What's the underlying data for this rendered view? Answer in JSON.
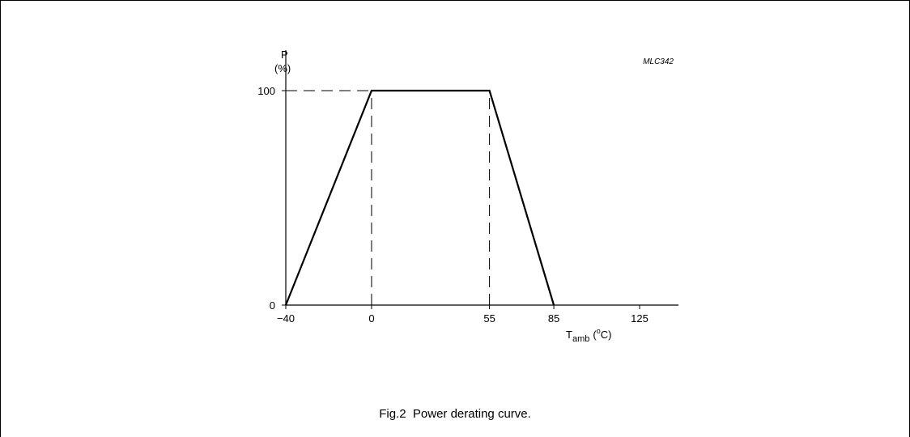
{
  "figure": {
    "reference_code": "MLC342",
    "caption": "Fig.2  Power derating curve."
  },
  "chart_data": {
    "type": "line",
    "title": "",
    "ylabel": "P",
    "ylabel_unit": "(%)",
    "xlabel": "T",
    "xlabel_subscript": "amb",
    "xlabel_unit_prefix": "(",
    "xlabel_unit_superscript": "o",
    "xlabel_unit_suffix": "C)",
    "x_ticks": [
      {
        "value": -40,
        "label": "−40"
      },
      {
        "value": 0,
        "label": "0"
      },
      {
        "value": 55,
        "label": "55"
      },
      {
        "value": 85,
        "label": "85"
      },
      {
        "value": 125,
        "label": "125"
      }
    ],
    "y_ticks": [
      {
        "value": 0,
        "label": "0"
      },
      {
        "value": 100,
        "label": "100"
      }
    ],
    "xlim": [
      -40,
      125
    ],
    "ylim": [
      0,
      100
    ],
    "grid": false,
    "series": [
      {
        "x": [
          -40,
          0,
          55,
          85
        ],
        "y": [
          0,
          100,
          100,
          0
        ],
        "color": "#000000"
      }
    ],
    "reference_lines": [
      {
        "orientation": "horizontal",
        "at": 100,
        "from": -40,
        "to": 0,
        "style": "dashed"
      },
      {
        "orientation": "vertical",
        "at": 0,
        "from": 0,
        "to": 100,
        "style": "dashed"
      },
      {
        "orientation": "vertical",
        "at": 55,
        "from": 0,
        "to": 100,
        "style": "dashed"
      }
    ]
  }
}
